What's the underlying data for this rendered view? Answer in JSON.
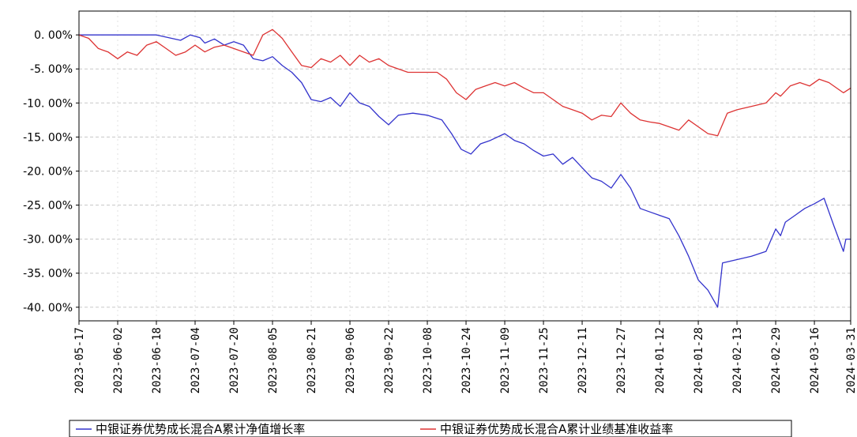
{
  "chart_data": {
    "type": "line",
    "title": "",
    "xlabel": "",
    "ylabel": "",
    "x_start": "2023-05-17",
    "x_end": "2024-03-31",
    "x_ticks": [
      "2023-05-17",
      "2023-06-02",
      "2023-06-18",
      "2023-07-04",
      "2023-07-20",
      "2023-08-05",
      "2023-08-21",
      "2023-09-06",
      "2023-09-22",
      "2023-10-08",
      "2023-10-24",
      "2023-11-09",
      "2023-11-25",
      "2023-12-11",
      "2023-12-27",
      "2024-01-12",
      "2024-01-28",
      "2024-02-13",
      "2024-02-29",
      "2024-03-16",
      "2024-03-31"
    ],
    "y_ticks": [
      0,
      -5,
      -10,
      -15,
      -20,
      -25,
      -30,
      -35,
      -40
    ],
    "y_tick_labels": [
      "0. 00%",
      "-5. 00%",
      "-10. 00%",
      "-15. 00%",
      "-20. 00%",
      "-25. 00%",
      "-30. 00%",
      "-35. 00%",
      "-40. 00%"
    ],
    "ylim": [
      -42,
      3.5
    ],
    "grid": true,
    "legend_position": "bottom",
    "series": [
      {
        "name": "中银证券优势成长混合A累计净值增长率",
        "color": "#3333cc",
        "points": [
          [
            "2023-05-17",
            0
          ],
          [
            "2023-06-18",
            0
          ],
          [
            "2023-06-28",
            -0.8
          ],
          [
            "2023-07-02",
            0
          ],
          [
            "2023-07-06",
            -0.4
          ],
          [
            "2023-07-08",
            -1.2
          ],
          [
            "2023-07-12",
            -0.6
          ],
          [
            "2023-07-16",
            -1.5
          ],
          [
            "2023-07-20",
            -1.0
          ],
          [
            "2023-07-24",
            -1.5
          ],
          [
            "2023-07-28",
            -3.5
          ],
          [
            "2023-08-01",
            -3.8
          ],
          [
            "2023-08-05",
            -3.2
          ],
          [
            "2023-08-09",
            -4.5
          ],
          [
            "2023-08-13",
            -5.5
          ],
          [
            "2023-08-17",
            -7.0
          ],
          [
            "2023-08-21",
            -9.5
          ],
          [
            "2023-08-25",
            -9.8
          ],
          [
            "2023-08-29",
            -9.2
          ],
          [
            "2023-09-02",
            -10.5
          ],
          [
            "2023-09-06",
            -8.5
          ],
          [
            "2023-09-10",
            -10.0
          ],
          [
            "2023-09-14",
            -10.5
          ],
          [
            "2023-09-18",
            -12.0
          ],
          [
            "2023-09-22",
            -13.2
          ],
          [
            "2023-09-26",
            -11.8
          ],
          [
            "2023-10-02",
            -11.5
          ],
          [
            "2023-10-08",
            -11.8
          ],
          [
            "2023-10-14",
            -12.5
          ],
          [
            "2023-10-18",
            -14.5
          ],
          [
            "2023-10-22",
            -16.8
          ],
          [
            "2023-10-26",
            -17.5
          ],
          [
            "2023-10-30",
            -16.0
          ],
          [
            "2023-11-03",
            -15.5
          ],
          [
            "2023-11-09",
            -14.5
          ],
          [
            "2023-11-13",
            -15.5
          ],
          [
            "2023-11-17",
            -16.0
          ],
          [
            "2023-11-21",
            -17.0
          ],
          [
            "2023-11-25",
            -17.8
          ],
          [
            "2023-11-29",
            -17.5
          ],
          [
            "2023-12-03",
            -19.0
          ],
          [
            "2023-12-07",
            -18.0
          ],
          [
            "2023-12-11",
            -19.5
          ],
          [
            "2023-12-15",
            -21.0
          ],
          [
            "2023-12-19",
            -21.5
          ],
          [
            "2023-12-23",
            -22.5
          ],
          [
            "2023-12-27",
            -20.5
          ],
          [
            "2023-12-31",
            -22.5
          ],
          [
            "2024-01-04",
            -25.5
          ],
          [
            "2024-01-08",
            -26.0
          ],
          [
            "2024-01-12",
            -26.5
          ],
          [
            "2024-01-16",
            -27.0
          ],
          [
            "2024-01-20",
            -29.5
          ],
          [
            "2024-01-24",
            -32.5
          ],
          [
            "2024-01-28",
            -36.0
          ],
          [
            "2024-02-01",
            -37.5
          ],
          [
            "2024-02-05",
            -40.0
          ],
          [
            "2024-02-07",
            -33.5
          ],
          [
            "2024-02-13",
            -33.0
          ],
          [
            "2024-02-19",
            -32.5
          ],
          [
            "2024-02-25",
            -31.8
          ],
          [
            "2024-02-29",
            -28.5
          ],
          [
            "2024-03-02",
            -29.5
          ],
          [
            "2024-03-04",
            -27.5
          ],
          [
            "2024-03-08",
            -26.5
          ],
          [
            "2024-03-12",
            -25.5
          ],
          [
            "2024-03-16",
            -24.8
          ],
          [
            "2024-03-20",
            -24.0
          ],
          [
            "2024-03-24",
            -28.0
          ],
          [
            "2024-03-28",
            -31.8
          ],
          [
            "2024-03-29",
            -30.0
          ],
          [
            "2024-03-31",
            -30.0
          ]
        ]
      },
      {
        "name": "中银证券优势成长混合A累计业绩基准收益率",
        "color": "#dd3333",
        "points": [
          [
            "2023-05-17",
            0
          ],
          [
            "2023-05-21",
            -0.5
          ],
          [
            "2023-05-25",
            -2.0
          ],
          [
            "2023-05-29",
            -2.5
          ],
          [
            "2023-06-02",
            -3.5
          ],
          [
            "2023-06-06",
            -2.5
          ],
          [
            "2023-06-10",
            -3.0
          ],
          [
            "2023-06-14",
            -1.5
          ],
          [
            "2023-06-18",
            -1.0
          ],
          [
            "2023-06-22",
            -2.0
          ],
          [
            "2023-06-26",
            -3.0
          ],
          [
            "2023-06-30",
            -2.5
          ],
          [
            "2023-07-04",
            -1.5
          ],
          [
            "2023-07-08",
            -2.5
          ],
          [
            "2023-07-12",
            -1.8
          ],
          [
            "2023-07-16",
            -1.5
          ],
          [
            "2023-07-20",
            -2.0
          ],
          [
            "2023-07-24",
            -2.5
          ],
          [
            "2023-07-28",
            -3.0
          ],
          [
            "2023-08-01",
            0
          ],
          [
            "2023-08-05",
            0.8
          ],
          [
            "2023-08-09",
            -0.5
          ],
          [
            "2023-08-13",
            -2.5
          ],
          [
            "2023-08-17",
            -4.5
          ],
          [
            "2023-08-21",
            -4.8
          ],
          [
            "2023-08-25",
            -3.5
          ],
          [
            "2023-08-29",
            -4.0
          ],
          [
            "2023-09-02",
            -3.0
          ],
          [
            "2023-09-06",
            -4.5
          ],
          [
            "2023-09-10",
            -3.0
          ],
          [
            "2023-09-14",
            -4.0
          ],
          [
            "2023-09-18",
            -3.5
          ],
          [
            "2023-09-22",
            -4.5
          ],
          [
            "2023-09-26",
            -5.0
          ],
          [
            "2023-09-30",
            -5.5
          ],
          [
            "2023-10-08",
            -5.5
          ],
          [
            "2023-10-12",
            -5.5
          ],
          [
            "2023-10-16",
            -6.5
          ],
          [
            "2023-10-20",
            -8.5
          ],
          [
            "2023-10-24",
            -9.5
          ],
          [
            "2023-10-28",
            -8.0
          ],
          [
            "2023-11-01",
            -7.5
          ],
          [
            "2023-11-05",
            -7.0
          ],
          [
            "2023-11-09",
            -7.5
          ],
          [
            "2023-11-13",
            -7.0
          ],
          [
            "2023-11-17",
            -7.8
          ],
          [
            "2023-11-21",
            -8.5
          ],
          [
            "2023-11-25",
            -8.5
          ],
          [
            "2023-11-29",
            -9.5
          ],
          [
            "2023-12-03",
            -10.5
          ],
          [
            "2023-12-07",
            -11.0
          ],
          [
            "2023-12-11",
            -11.5
          ],
          [
            "2023-12-15",
            -12.5
          ],
          [
            "2023-12-19",
            -11.8
          ],
          [
            "2023-12-23",
            -12.0
          ],
          [
            "2023-12-27",
            -10.0
          ],
          [
            "2023-12-31",
            -11.5
          ],
          [
            "2024-01-04",
            -12.5
          ],
          [
            "2024-01-08",
            -12.8
          ],
          [
            "2024-01-12",
            -13.0
          ],
          [
            "2024-01-16",
            -13.5
          ],
          [
            "2024-01-20",
            -14.0
          ],
          [
            "2024-01-24",
            -12.5
          ],
          [
            "2024-01-28",
            -13.5
          ],
          [
            "2024-02-01",
            -14.5
          ],
          [
            "2024-02-05",
            -14.8
          ],
          [
            "2024-02-09",
            -11.5
          ],
          [
            "2024-02-13",
            -11.0
          ],
          [
            "2024-02-19",
            -10.5
          ],
          [
            "2024-02-25",
            -10.0
          ],
          [
            "2024-02-29",
            -8.5
          ],
          [
            "2024-03-02",
            -9.0
          ],
          [
            "2024-03-06",
            -7.5
          ],
          [
            "2024-03-10",
            -7.0
          ],
          [
            "2024-03-14",
            -7.5
          ],
          [
            "2024-03-18",
            -6.5
          ],
          [
            "2024-03-22",
            -7.0
          ],
          [
            "2024-03-26",
            -8.0
          ],
          [
            "2024-03-28",
            -8.5
          ],
          [
            "2024-03-31",
            -7.8
          ]
        ]
      }
    ]
  }
}
